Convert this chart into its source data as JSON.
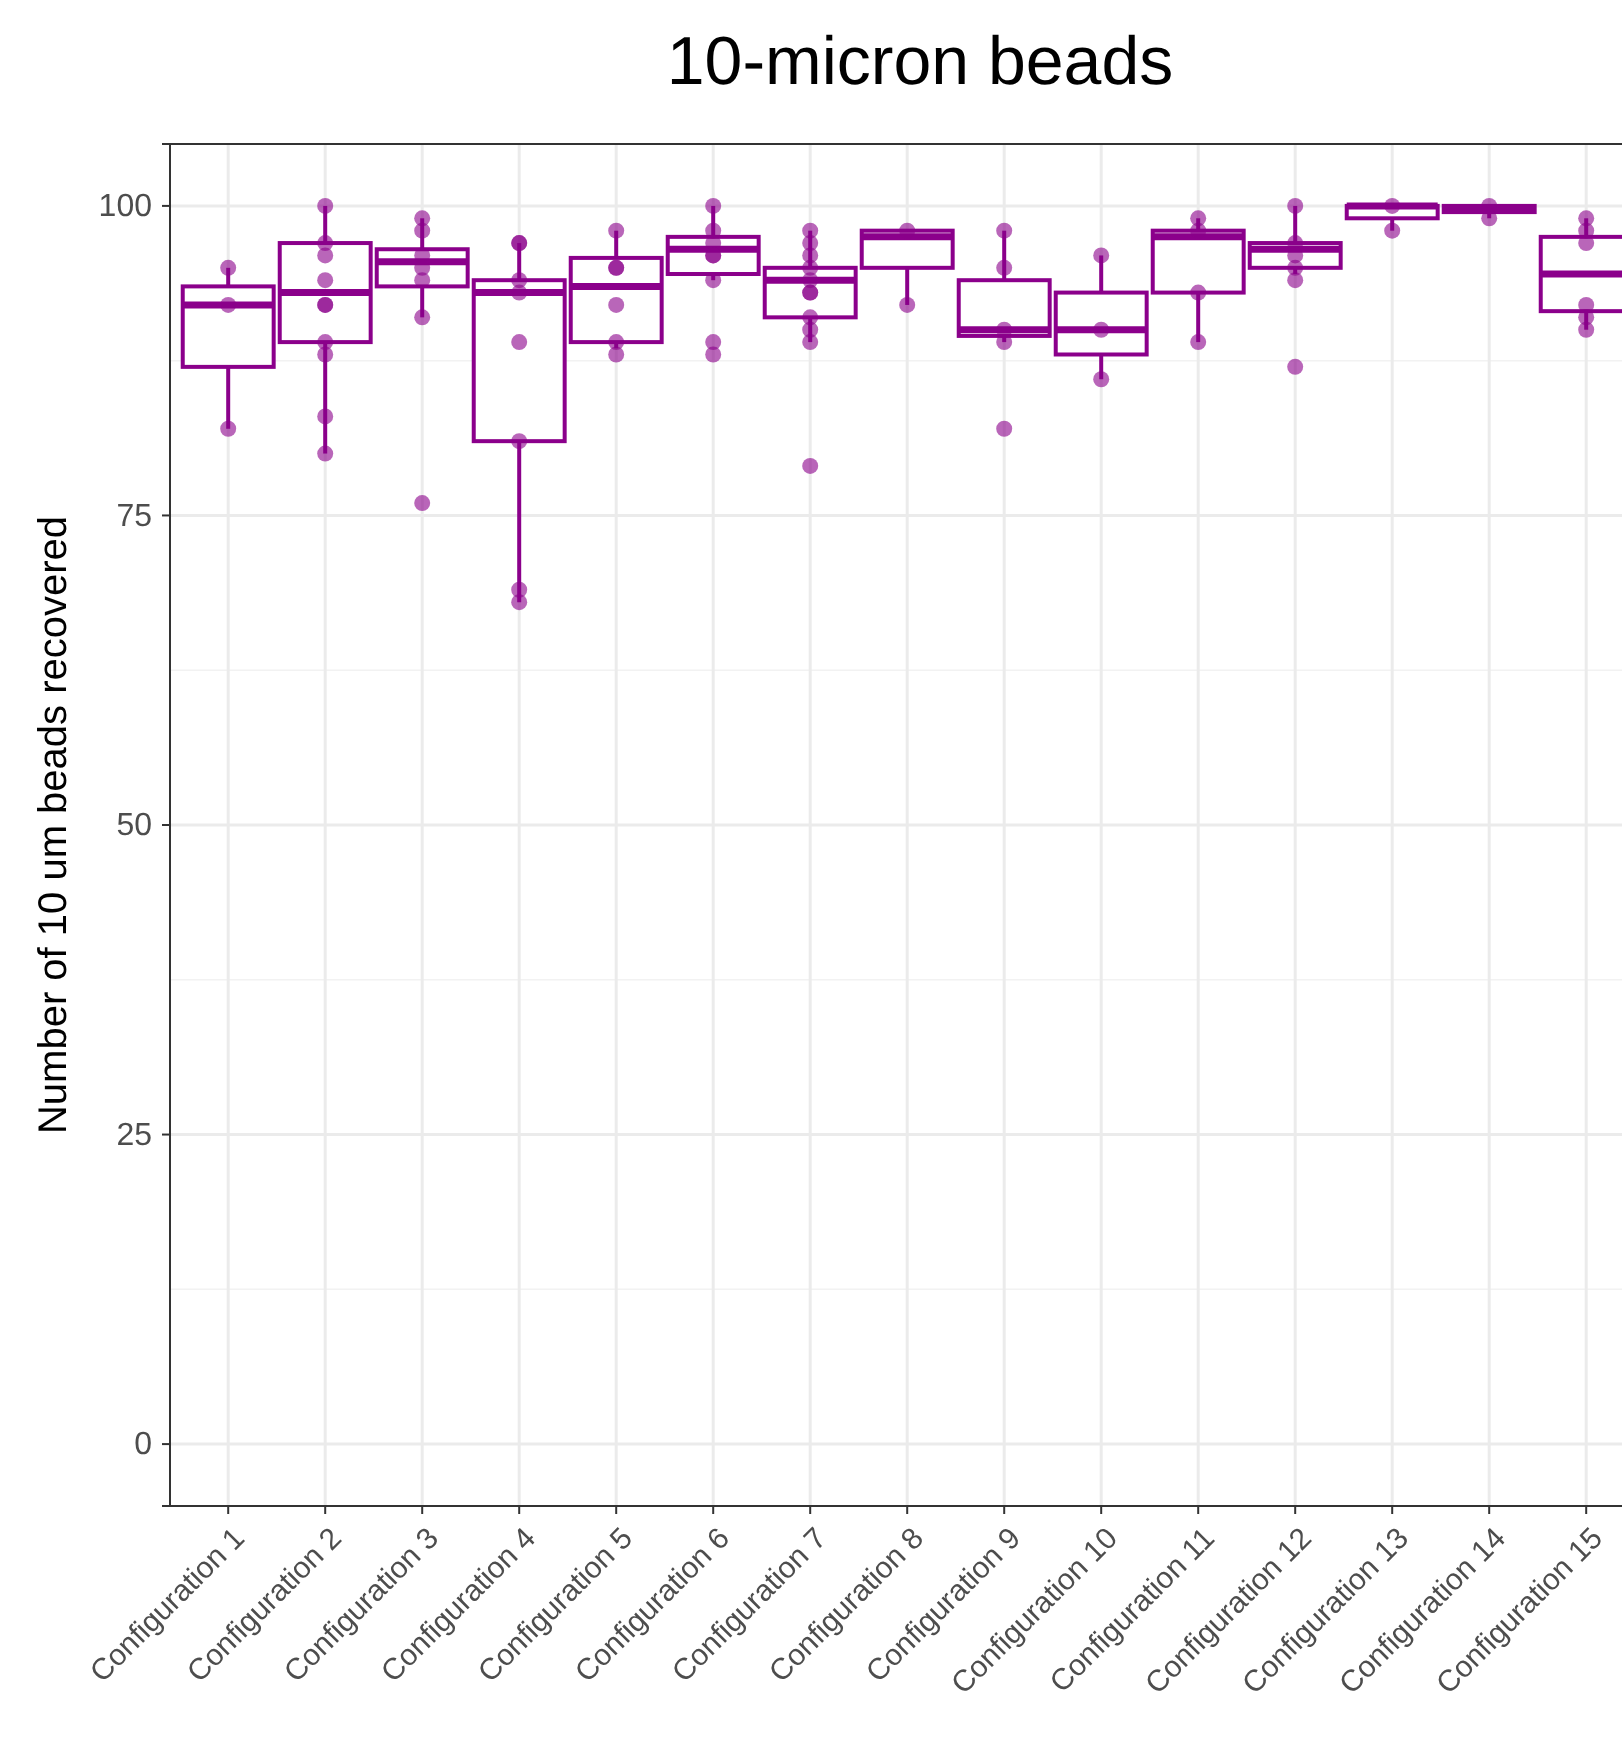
{
  "chart_data": {
    "type": "box",
    "title": "10-micron beads",
    "ylabel": "Number of 10 um beads recovered",
    "categories": [
      "Configuration 1",
      "Configuration 2",
      "Configuration 3",
      "Configuration 4",
      "Configuration 5",
      "Configuration 6",
      "Configuration 7",
      "Configuration 8",
      "Configuration 9",
      "Configuration 10",
      "Configuration 11",
      "Configuration 12",
      "Configuration 13",
      "Configuration 14",
      "Configuration 15"
    ],
    "ylim": [
      -5,
      105
    ],
    "yticks": [
      0,
      25,
      50,
      75,
      100
    ],
    "grid": true,
    "series": [
      {
        "color": "#8b008b",
        "boxes": [
          {
            "low": 82,
            "q1": 87,
            "median": 92,
            "q3": 93.5,
            "high": 95
          },
          {
            "low": 80,
            "q1": 89,
            "median": 93,
            "q3": 97,
            "high": 100
          },
          {
            "low": 91,
            "q1": 93.5,
            "median": 95.5,
            "q3": 96.5,
            "high": 99
          },
          {
            "low": 68,
            "q1": 81,
            "median": 93,
            "q3": 94,
            "high": 97
          },
          {
            "low": 88.5,
            "q1": 89,
            "median": 93.5,
            "q3": 95.8,
            "high": 98
          },
          {
            "low": 94,
            "q1": 94.5,
            "median": 96.5,
            "q3": 97.5,
            "high": 100
          },
          {
            "low": 89,
            "q1": 91,
            "median": 94,
            "q3": 95,
            "high": 98
          },
          {
            "low": 92,
            "q1": 95,
            "median": 97.5,
            "q3": 98,
            "high": 98
          },
          {
            "low": 89,
            "q1": 89.5,
            "median": 90,
            "q3": 94,
            "high": 98
          },
          {
            "low": 86,
            "q1": 88,
            "median": 90,
            "q3": 93,
            "high": 96
          },
          {
            "low": 89,
            "q1": 93,
            "median": 97.5,
            "q3": 98,
            "high": 99
          },
          {
            "low": 94.5,
            "q1": 95,
            "median": 96.5,
            "q3": 97,
            "high": 100
          },
          {
            "low": 98,
            "q1": 99,
            "median": 100,
            "q3": 100,
            "high": 100
          },
          {
            "low": 99,
            "q1": 99.5,
            "median": 99.8,
            "q3": 100,
            "high": 100
          },
          {
            "low": 90,
            "q1": 91.5,
            "median": 94.5,
            "q3": 97.5,
            "high": 99
          }
        ]
      },
      {
        "type": "scatter",
        "color": "#8b008b",
        "x": [
          "Configuration 1",
          "Configuration 1",
          "Configuration 1",
          "Configuration 2",
          "Configuration 2",
          "Configuration 2",
          "Configuration 2",
          "Configuration 2",
          "Configuration 2",
          "Configuration 2",
          "Configuration 2",
          "Configuration 2",
          "Configuration 2",
          "Configuration 3",
          "Configuration 3",
          "Configuration 3",
          "Configuration 3",
          "Configuration 3",
          "Configuration 3",
          "Configuration 3",
          "Configuration 4",
          "Configuration 4",
          "Configuration 4",
          "Configuration 4",
          "Configuration 4",
          "Configuration 4",
          "Configuration 4",
          "Configuration 4",
          "Configuration 5",
          "Configuration 5",
          "Configuration 5",
          "Configuration 5",
          "Configuration 5",
          "Configuration 5",
          "Configuration 6",
          "Configuration 6",
          "Configuration 6",
          "Configuration 6",
          "Configuration 6",
          "Configuration 6",
          "Configuration 6",
          "Configuration 6",
          "Configuration 7",
          "Configuration 7",
          "Configuration 7",
          "Configuration 7",
          "Configuration 7",
          "Configuration 7",
          "Configuration 7",
          "Configuration 7",
          "Configuration 7",
          "Configuration 7",
          "Configuration 7",
          "Configuration 8",
          "Configuration 8",
          "Configuration 9",
          "Configuration 9",
          "Configuration 9",
          "Configuration 9",
          "Configuration 9",
          "Configuration 10",
          "Configuration 10",
          "Configuration 10",
          "Configuration 11",
          "Configuration 11",
          "Configuration 11",
          "Configuration 11",
          "Configuration 12",
          "Configuration 12",
          "Configuration 12",
          "Configuration 12",
          "Configuration 12",
          "Configuration 12",
          "Configuration 13",
          "Configuration 13",
          "Configuration 14",
          "Configuration 14",
          "Configuration 15",
          "Configuration 15",
          "Configuration 15",
          "Configuration 15",
          "Configuration 15",
          "Configuration 15"
        ],
        "values": [
          95,
          92,
          82,
          100,
          97,
          96,
          94,
          92,
          92,
          89,
          88,
          83,
          80,
          99,
          98,
          96,
          95,
          94,
          91,
          76,
          97,
          97,
          94,
          93,
          89,
          81,
          69,
          68,
          98,
          95,
          95,
          92,
          89,
          88,
          100,
          98,
          97,
          96,
          96,
          94,
          89,
          88,
          98,
          97,
          96,
          95,
          94,
          93,
          93,
          91,
          90,
          89,
          79,
          98,
          92,
          98,
          95,
          90,
          89,
          82,
          96,
          90,
          86,
          99,
          98,
          93,
          89,
          100,
          97,
          96,
          95,
          94,
          87,
          100,
          98,
          100,
          99,
          99,
          98,
          97,
          92,
          91,
          90
        ]
      }
    ]
  }
}
